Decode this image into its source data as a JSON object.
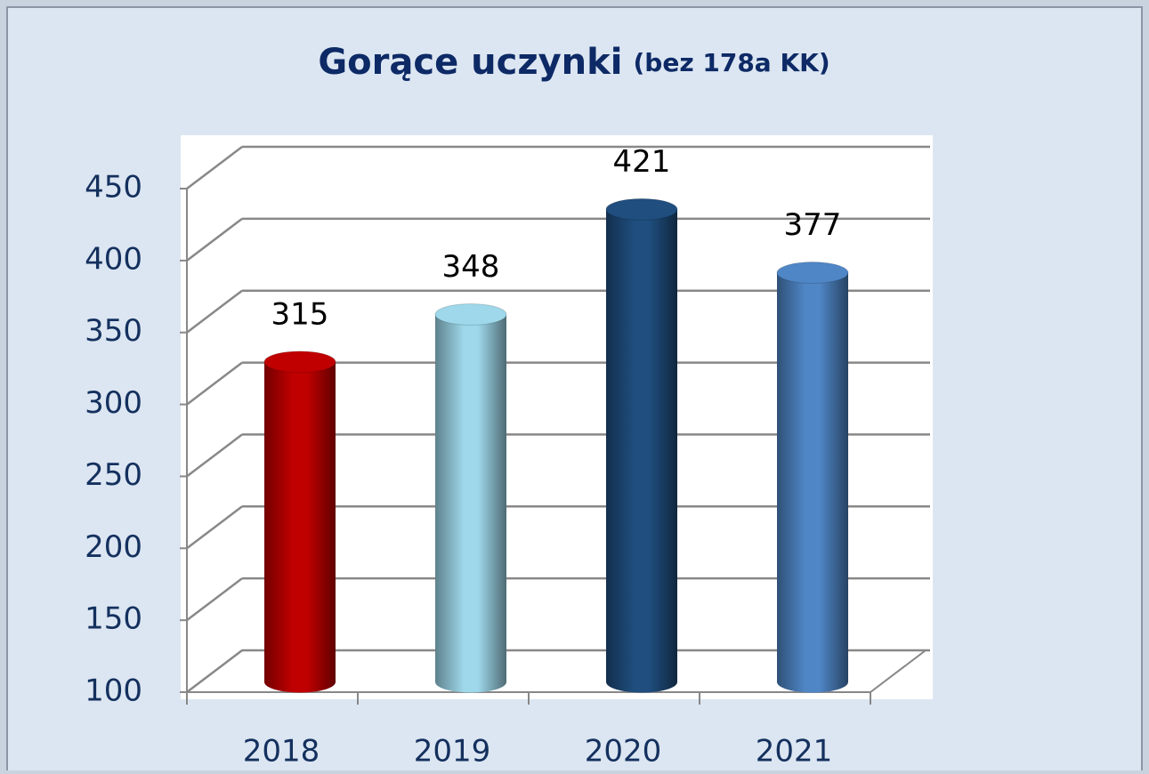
{
  "chart_data": {
    "type": "bar",
    "title": "Gorące uczynki",
    "subtitle": "(bez 178a KK)",
    "categories": [
      "2018",
      "2019",
      "2020",
      "2021"
    ],
    "values": [
      315,
      348,
      421,
      377
    ],
    "colors": [
      "#c00000",
      "#9ed8ea",
      "#1f4e7f",
      "#4f86c6"
    ],
    "ylim": [
      100,
      450
    ],
    "yticks": [
      100,
      150,
      200,
      250,
      300,
      350,
      400,
      450
    ],
    "grid": true
  }
}
